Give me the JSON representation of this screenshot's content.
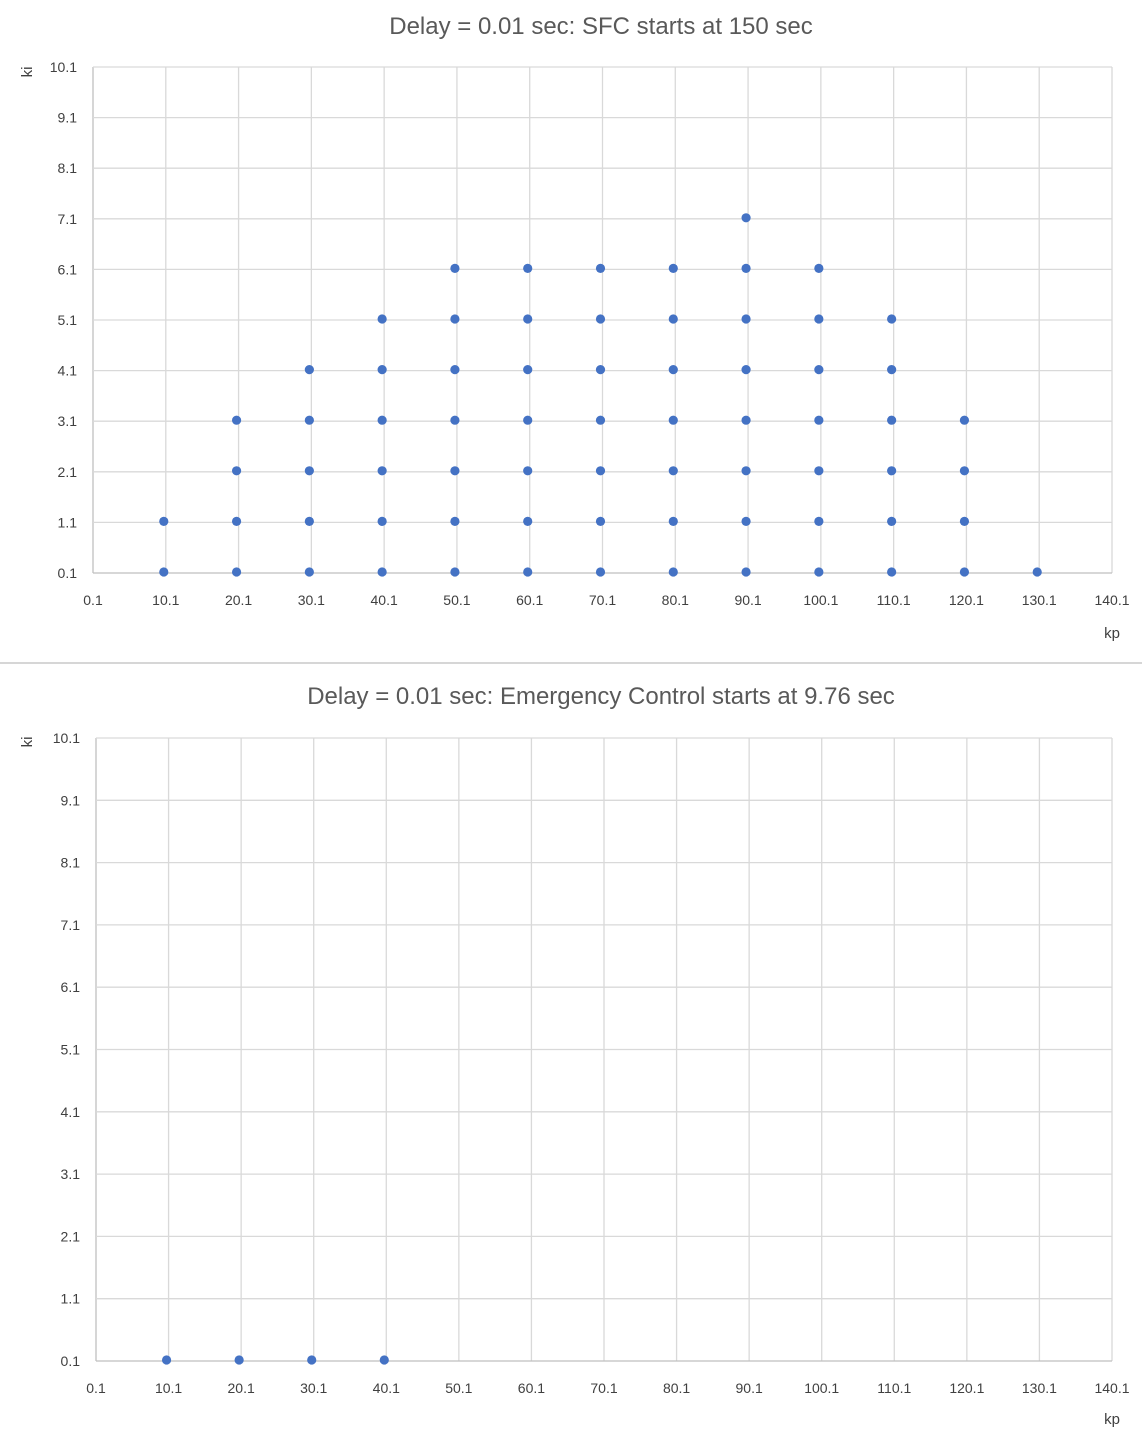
{
  "chart_data": [
    {
      "type": "scatter",
      "title": "Delay = 0.01 sec: SFC starts at 150 sec",
      "xlabel": "kp",
      "ylabel": "ki",
      "xlim": [
        0.1,
        140.1
      ],
      "ylim": [
        0.1,
        10.1
      ],
      "xticks": [
        "0.1",
        "10.1",
        "20.1",
        "30.1",
        "40.1",
        "50.1",
        "60.1",
        "70.1",
        "80.1",
        "90.1",
        "100.1",
        "110.1",
        "120.1",
        "130.1",
        "140.1"
      ],
      "yticks": [
        "0.1",
        "1.1",
        "2.1",
        "3.1",
        "4.1",
        "5.1",
        "6.1",
        "7.1",
        "8.1",
        "9.1",
        "10.1"
      ],
      "grid": true,
      "marker_color": "#4472C4",
      "points": [
        [
          10.1,
          0.1
        ],
        [
          10.1,
          1.1
        ],
        [
          20.1,
          0.1
        ],
        [
          20.1,
          1.1
        ],
        [
          20.1,
          2.1
        ],
        [
          20.1,
          3.1
        ],
        [
          30.1,
          0.1
        ],
        [
          30.1,
          1.1
        ],
        [
          30.1,
          2.1
        ],
        [
          30.1,
          3.1
        ],
        [
          30.1,
          4.1
        ],
        [
          40.1,
          0.1
        ],
        [
          40.1,
          1.1
        ],
        [
          40.1,
          2.1
        ],
        [
          40.1,
          3.1
        ],
        [
          40.1,
          4.1
        ],
        [
          40.1,
          5.1
        ],
        [
          50.1,
          0.1
        ],
        [
          50.1,
          1.1
        ],
        [
          50.1,
          2.1
        ],
        [
          50.1,
          3.1
        ],
        [
          50.1,
          4.1
        ],
        [
          50.1,
          5.1
        ],
        [
          50.1,
          6.1
        ],
        [
          60.1,
          0.1
        ],
        [
          60.1,
          1.1
        ],
        [
          60.1,
          2.1
        ],
        [
          60.1,
          3.1
        ],
        [
          60.1,
          4.1
        ],
        [
          60.1,
          5.1
        ],
        [
          60.1,
          6.1
        ],
        [
          70.1,
          0.1
        ],
        [
          70.1,
          1.1
        ],
        [
          70.1,
          2.1
        ],
        [
          70.1,
          3.1
        ],
        [
          70.1,
          4.1
        ],
        [
          70.1,
          5.1
        ],
        [
          70.1,
          6.1
        ],
        [
          80.1,
          0.1
        ],
        [
          80.1,
          1.1
        ],
        [
          80.1,
          2.1
        ],
        [
          80.1,
          3.1
        ],
        [
          80.1,
          4.1
        ],
        [
          80.1,
          5.1
        ],
        [
          80.1,
          6.1
        ],
        [
          90.1,
          0.1
        ],
        [
          90.1,
          1.1
        ],
        [
          90.1,
          2.1
        ],
        [
          90.1,
          3.1
        ],
        [
          90.1,
          4.1
        ],
        [
          90.1,
          5.1
        ],
        [
          90.1,
          6.1
        ],
        [
          90.1,
          7.1
        ],
        [
          100.1,
          0.1
        ],
        [
          100.1,
          1.1
        ],
        [
          100.1,
          2.1
        ],
        [
          100.1,
          3.1
        ],
        [
          100.1,
          4.1
        ],
        [
          100.1,
          5.1
        ],
        [
          100.1,
          6.1
        ],
        [
          110.1,
          0.1
        ],
        [
          110.1,
          1.1
        ],
        [
          110.1,
          2.1
        ],
        [
          110.1,
          3.1
        ],
        [
          110.1,
          4.1
        ],
        [
          110.1,
          5.1
        ],
        [
          120.1,
          0.1
        ],
        [
          120.1,
          1.1
        ],
        [
          120.1,
          2.1
        ],
        [
          120.1,
          3.1
        ],
        [
          130.1,
          0.1
        ]
      ]
    },
    {
      "type": "scatter",
      "title": "Delay = 0.01 sec: Emergency Control starts at 9.76 sec",
      "xlabel": "kp",
      "ylabel": "ki",
      "xlim": [
        0.1,
        140.1
      ],
      "ylim": [
        0.1,
        10.1
      ],
      "xticks": [
        "0.1",
        "10.1",
        "20.1",
        "30.1",
        "40.1",
        "50.1",
        "60.1",
        "70.1",
        "80.1",
        "90.1",
        "100.1",
        "110.1",
        "120.1",
        "130.1",
        "140.1"
      ],
      "yticks": [
        "0.1",
        "1.1",
        "2.1",
        "3.1",
        "4.1",
        "5.1",
        "6.1",
        "7.1",
        "8.1",
        "9.1",
        "10.1"
      ],
      "grid": true,
      "marker_color": "#4472C4",
      "points": [
        [
          10.1,
          0.1
        ],
        [
          20.1,
          0.1
        ],
        [
          30.1,
          0.1
        ],
        [
          40.1,
          0.1
        ]
      ]
    }
  ]
}
